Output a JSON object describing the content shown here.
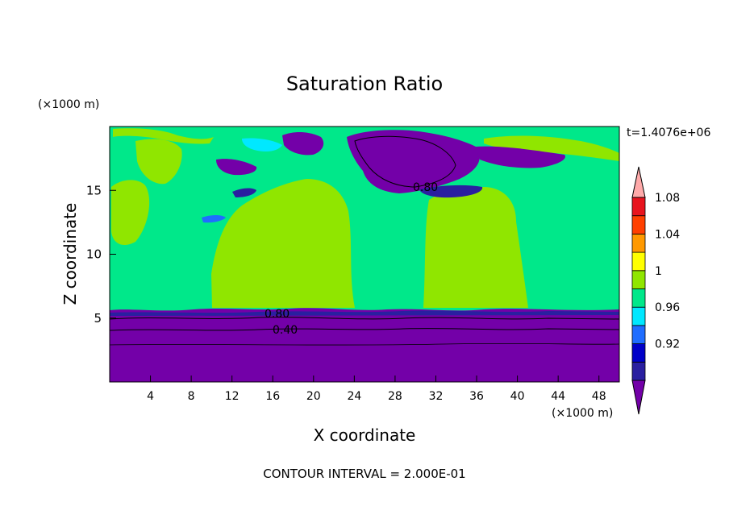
{
  "chart_data": {
    "type": "heatmap",
    "title": "Saturation Ratio",
    "xlabel": "X coordinate",
    "ylabel": "Z coordinate",
    "x_unit": "(×1000 m)",
    "z_unit": "(×1000 m)",
    "time_label": "t=1.4076e+06",
    "footer": "CONTOUR INTERVAL = 2.000E-01",
    "xlim": [
      0,
      50
    ],
    "ylim": [
      0,
      20
    ],
    "x_ticks": [
      "4",
      "8",
      "12",
      "16",
      "20",
      "24",
      "28",
      "32",
      "36",
      "40",
      "44",
      "48"
    ],
    "y_ticks": [
      "5",
      "10",
      "15"
    ],
    "contour_labels": [
      "0.80",
      "0.80",
      "0.40"
    ],
    "colorbar": {
      "levels": [
        "0.92",
        "0.96",
        "1",
        "1.04",
        "1.08"
      ],
      "colors": [
        "#7300a8",
        "#2a1fa0",
        "#0000c8",
        "#1f6dff",
        "#00e8ff",
        "#00e88a",
        "#90e600",
        "#ffff00",
        "#ff9900",
        "#ff4000",
        "#e8141e",
        "#ffaaaa"
      ]
    },
    "grid": false,
    "legend": "right colorbar"
  }
}
